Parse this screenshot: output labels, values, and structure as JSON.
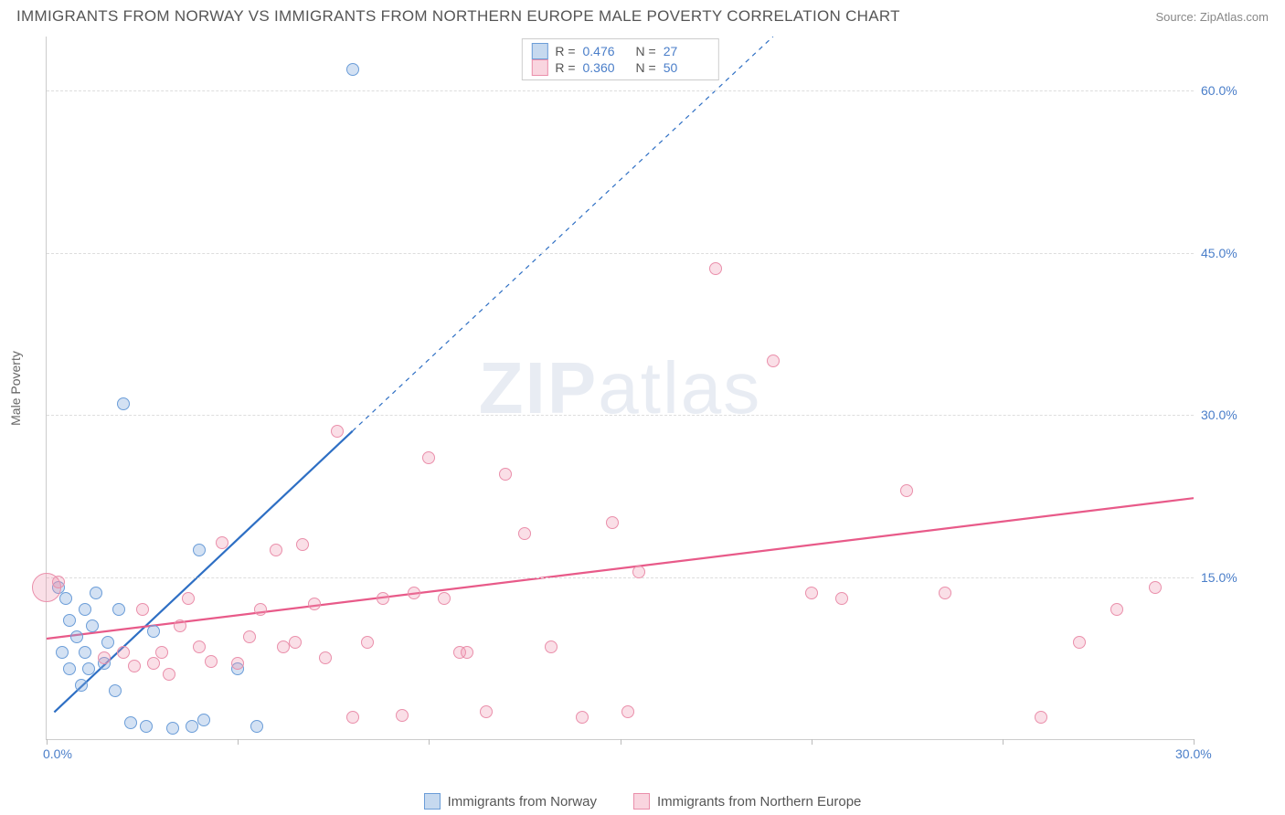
{
  "header": {
    "title": "IMMIGRANTS FROM NORWAY VS IMMIGRANTS FROM NORTHERN EUROPE MALE POVERTY CORRELATION CHART",
    "source_prefix": "Source: ",
    "source_name": "ZipAtlas.com"
  },
  "chart": {
    "type": "scatter",
    "y_axis_title": "Male Poverty",
    "background_color": "#ffffff",
    "grid_color": "#dddddd",
    "axis_color": "#cccccc",
    "tick_label_color": "#4a7ec9",
    "axis_title_color": "#666666",
    "x_range": [
      0,
      30
    ],
    "y_left_range": [
      0,
      65
    ],
    "y_right_range": [
      0,
      32.5
    ],
    "x_ticks": [
      0,
      5,
      10,
      15,
      20,
      25,
      30
    ],
    "x_labels_shown": {
      "0": "0.0%",
      "30": "30.0%"
    },
    "y_gridlines": [
      15,
      30,
      45,
      60
    ],
    "y_right_labels": {
      "15": "15.0%",
      "30": "30.0%",
      "45": "45.0%",
      "60": "60.0%"
    },
    "watermark": "ZIPatlas",
    "series": [
      {
        "name": "Immigrants from Norway",
        "fill": "rgba(128,170,220,0.35)",
        "stroke": "#6b9dd8",
        "trend_color": "#2e6fc4",
        "trend_width": 2.2,
        "trend_solid": [
          [
            0.2,
            2.5
          ],
          [
            8.0,
            28.5
          ]
        ],
        "trend_dashed": [
          [
            8.0,
            28.5
          ],
          [
            19.0,
            65.0
          ]
        ],
        "marker_r": 7,
        "points": [
          [
            0.3,
            14.0
          ],
          [
            0.5,
            13.0
          ],
          [
            0.4,
            8.0
          ],
          [
            0.6,
            11.0
          ],
          [
            0.8,
            9.5
          ],
          [
            0.6,
            6.5
          ],
          [
            1.0,
            12.0
          ],
          [
            1.2,
            10.5
          ],
          [
            1.0,
            8.0
          ],
          [
            1.3,
            13.5
          ],
          [
            1.5,
            7.0
          ],
          [
            0.9,
            5.0
          ],
          [
            1.6,
            9.0
          ],
          [
            1.8,
            4.5
          ],
          [
            2.0,
            31.0
          ],
          [
            2.2,
            1.5
          ],
          [
            2.6,
            1.2
          ],
          [
            3.3,
            1.0
          ],
          [
            3.8,
            1.2
          ],
          [
            4.1,
            1.8
          ],
          [
            5.0,
            6.5
          ],
          [
            2.8,
            10.0
          ],
          [
            4.0,
            17.5
          ],
          [
            5.5,
            1.2
          ],
          [
            8.0,
            62.0
          ],
          [
            1.9,
            12.0
          ],
          [
            1.1,
            6.5
          ]
        ]
      },
      {
        "name": "Immigrants from Northern Europe",
        "fill": "rgba(240,150,175,0.30)",
        "stroke": "#ea8fab",
        "trend_color": "#e85a89",
        "trend_width": 2.2,
        "trend_solid": [
          [
            0.0,
            9.3
          ],
          [
            30.0,
            22.3
          ]
        ],
        "marker_r": 7,
        "large_marker_r": 16,
        "points": [
          [
            1.5,
            7.5
          ],
          [
            2.0,
            8.0
          ],
          [
            2.3,
            6.8
          ],
          [
            2.5,
            12.0
          ],
          [
            2.8,
            7.0
          ],
          [
            3.0,
            8.0
          ],
          [
            3.2,
            6.0
          ],
          [
            3.5,
            10.5
          ],
          [
            3.7,
            13.0
          ],
          [
            4.0,
            8.5
          ],
          [
            4.3,
            7.2
          ],
          [
            4.6,
            18.2
          ],
          [
            5.0,
            7.0
          ],
          [
            5.3,
            9.5
          ],
          [
            5.6,
            12.0
          ],
          [
            6.0,
            17.5
          ],
          [
            6.2,
            8.5
          ],
          [
            6.5,
            9.0
          ],
          [
            6.7,
            18.0
          ],
          [
            7.0,
            12.5
          ],
          [
            7.3,
            7.5
          ],
          [
            7.6,
            28.5
          ],
          [
            8.0,
            2.0
          ],
          [
            8.4,
            9.0
          ],
          [
            8.8,
            13.0
          ],
          [
            9.3,
            2.2
          ],
          [
            9.6,
            13.5
          ],
          [
            10.0,
            26.0
          ],
          [
            10.4,
            13.0
          ],
          [
            10.8,
            8.0
          ],
          [
            11.0,
            8.0
          ],
          [
            11.5,
            2.5
          ],
          [
            12.0,
            24.5
          ],
          [
            12.5,
            19.0
          ],
          [
            13.2,
            8.5
          ],
          [
            14.0,
            2.0
          ],
          [
            14.8,
            20.0
          ],
          [
            15.2,
            2.5
          ],
          [
            15.5,
            15.5
          ],
          [
            17.5,
            43.5
          ],
          [
            19.0,
            35.0
          ],
          [
            20.0,
            13.5
          ],
          [
            20.8,
            13.0
          ],
          [
            22.5,
            23.0
          ],
          [
            23.5,
            13.5
          ],
          [
            26.0,
            2.0
          ],
          [
            27.0,
            9.0
          ],
          [
            28.0,
            12.0
          ],
          [
            29.0,
            14.0
          ],
          [
            0.3,
            14.5
          ]
        ],
        "large_points": [
          [
            0.0,
            14.0
          ]
        ]
      }
    ],
    "legend_top": {
      "rows": [
        {
          "swatch_fill": "rgba(128,170,220,0.45)",
          "swatch_stroke": "#6b9dd8",
          "r_label": "R =",
          "r_value": "0.476",
          "n_label": "N =",
          "n_value": "27"
        },
        {
          "swatch_fill": "rgba(240,150,175,0.40)",
          "swatch_stroke": "#ea8fab",
          "r_label": "R =",
          "r_value": "0.360",
          "n_label": "N =",
          "n_value": "50"
        }
      ]
    },
    "legend_bottom": [
      {
        "swatch_fill": "rgba(128,170,220,0.45)",
        "swatch_stroke": "#6b9dd8",
        "label": "Immigrants from Norway"
      },
      {
        "swatch_fill": "rgba(240,150,175,0.40)",
        "swatch_stroke": "#ea8fab",
        "label": "Immigrants from Northern Europe"
      }
    ]
  }
}
